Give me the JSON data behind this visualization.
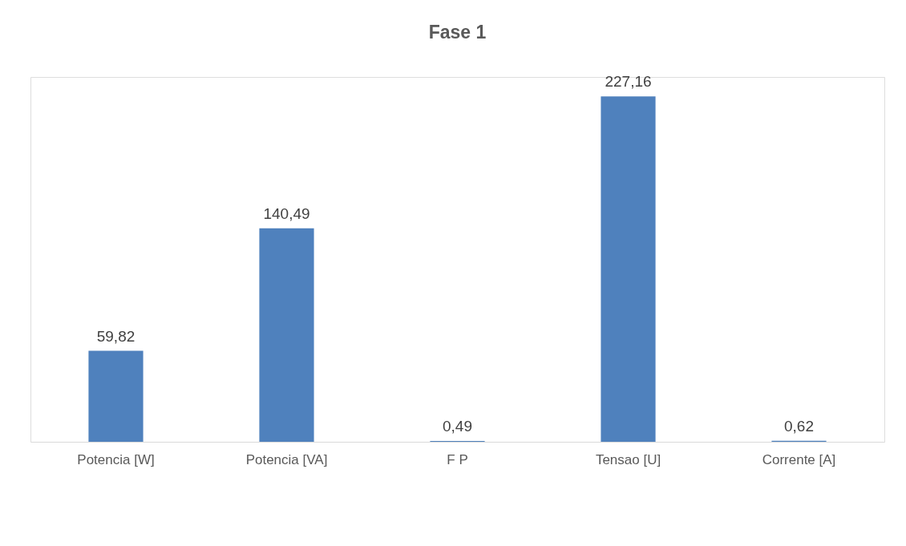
{
  "chart_data": {
    "type": "bar",
    "title": "Fase 1",
    "categories": [
      "Potencia  [W]",
      "Potencia [VA]",
      "F P",
      "Tensao [U]",
      "Corrente [A]"
    ],
    "values": [
      59.82,
      140.49,
      0.49,
      227.16,
      0.62
    ],
    "value_labels": [
      "59,82",
      "140,49",
      "0,49",
      "227,16",
      "0,62"
    ],
    "color": "#4f81bd"
  }
}
